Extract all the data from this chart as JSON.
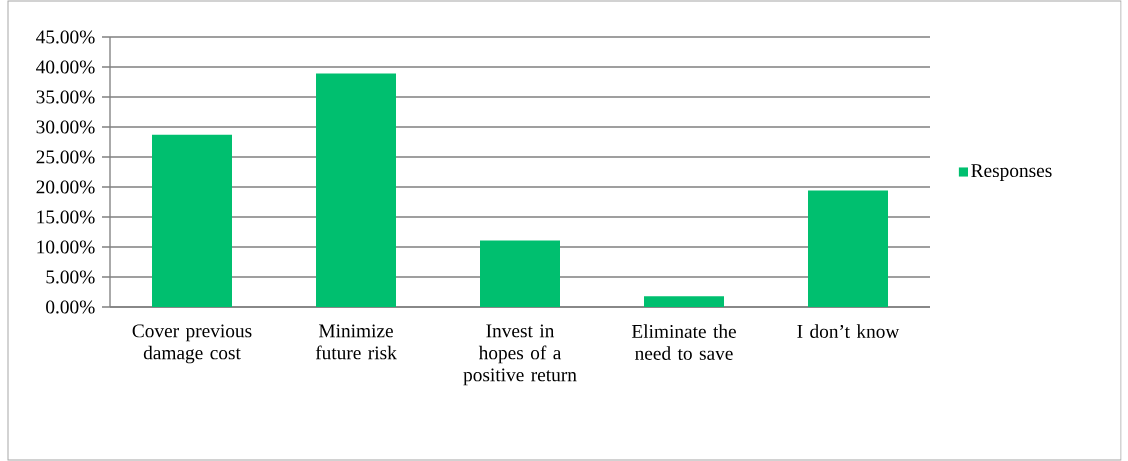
{
  "chart_data": {
    "type": "bar",
    "categories": [
      "Cover previous damage cost",
      "Minimize future risk",
      "Invest in hopes of a positive return",
      "Eliminate the need to save",
      "I don’t know"
    ],
    "series": [
      {
        "name": "Responses",
        "color": "#00bf6f",
        "values": [
          28.7,
          38.9,
          11.1,
          1.8,
          19.4
        ]
      }
    ],
    "ylim": [
      0,
      45
    ],
    "yticks": [
      {
        "value": 0,
        "label": "0.00%"
      },
      {
        "value": 5,
        "label": "5.00%"
      },
      {
        "value": 10,
        "label": "10.00%"
      },
      {
        "value": 15,
        "label": "15.00%"
      },
      {
        "value": 20,
        "label": "20.00%"
      },
      {
        "value": 25,
        "label": "25.00%"
      },
      {
        "value": 30,
        "label": "30.00%"
      },
      {
        "value": 35,
        "label": "35.00%"
      },
      {
        "value": 40,
        "label": "40.00%"
      },
      {
        "value": 45,
        "label": "45.00%"
      }
    ],
    "grid": "y",
    "legend": "right"
  }
}
